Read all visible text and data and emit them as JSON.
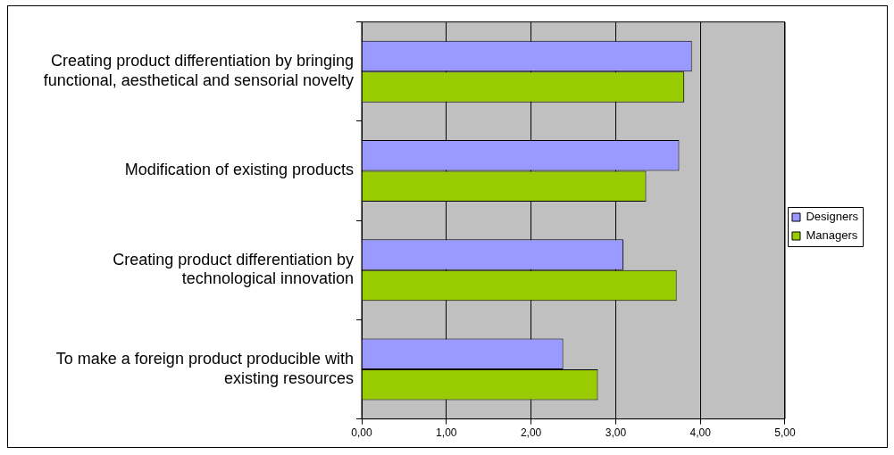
{
  "chart_data": {
    "type": "bar",
    "orientation": "horizontal",
    "categories": [
      "Creating product differentiation by bringing functional, aesthetical and sensorial novelty",
      "Modification of existing products",
      "Creating product differentiation by technological innovation",
      "To make a foreign product producible with existing resources"
    ],
    "series": [
      {
        "name": "Designers",
        "color": "#9999ff",
        "values": [
          3.9,
          3.75,
          3.09,
          2.38
        ]
      },
      {
        "name": "Managers",
        "color": "#99cc00",
        "values": [
          3.81,
          3.36,
          3.72,
          2.79
        ]
      }
    ],
    "xlim": [
      0,
      5
    ],
    "xticks": [
      {
        "value": 0,
        "label": "0,00"
      },
      {
        "value": 1,
        "label": "1,00"
      },
      {
        "value": 2,
        "label": "2,00"
      },
      {
        "value": 3,
        "label": "3,00"
      },
      {
        "value": 4,
        "label": "4,00"
      },
      {
        "value": 5,
        "label": "5,00"
      }
    ],
    "grid": "x",
    "legend": "right"
  }
}
